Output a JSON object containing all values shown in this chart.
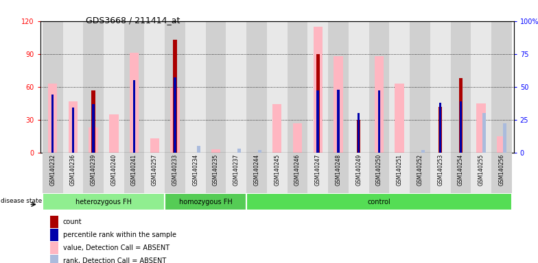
{
  "title": "GDS3668 / 211414_at",
  "samples": [
    "GSM140232",
    "GSM140236",
    "GSM140239",
    "GSM140240",
    "GSM140241",
    "GSM140257",
    "GSM140233",
    "GSM140234",
    "GSM140235",
    "GSM140237",
    "GSM140244",
    "GSM140245",
    "GSM140246",
    "GSM140247",
    "GSM140248",
    "GSM140249",
    "GSM140250",
    "GSM140251",
    "GSM140252",
    "GSM140253",
    "GSM140254",
    "GSM140255",
    "GSM140256"
  ],
  "groups": [
    {
      "label": "heterozygous FH",
      "start": 0,
      "end": 6,
      "color": "#90EE90"
    },
    {
      "label": "homozygous FH",
      "start": 6,
      "end": 10,
      "color": "#55CC55"
    },
    {
      "label": "control",
      "start": 10,
      "end": 23,
      "color": "#55DD55"
    }
  ],
  "count": [
    null,
    null,
    57,
    null,
    null,
    null,
    103,
    null,
    null,
    null,
    null,
    null,
    null,
    90,
    null,
    30,
    null,
    null,
    null,
    42,
    68,
    null,
    null
  ],
  "percentile": [
    44,
    34,
    37,
    null,
    55,
    null,
    57,
    null,
    null,
    null,
    null,
    null,
    null,
    47,
    48,
    30,
    47,
    null,
    null,
    38,
    39,
    null,
    null
  ],
  "value_absent": [
    63,
    47,
    23,
    35,
    91,
    13,
    59,
    null,
    3,
    null,
    null,
    44,
    27,
    115,
    88,
    null,
    88,
    63,
    null,
    null,
    null,
    45,
    15
  ],
  "rank_absent": [
    null,
    null,
    null,
    null,
    null,
    null,
    null,
    5,
    null,
    3,
    2,
    null,
    null,
    null,
    null,
    null,
    null,
    null,
    2,
    null,
    null,
    30,
    22
  ],
  "ylim_left": [
    0,
    120
  ],
  "ylim_right": [
    0,
    100
  ],
  "yticks_left": [
    0,
    30,
    60,
    90,
    120
  ],
  "ytick_labels_left": [
    "0",
    "30",
    "60",
    "90",
    "120"
  ],
  "yticks_right": [
    0,
    25,
    50,
    75,
    100
  ],
  "ytick_labels_right": [
    "0",
    "25",
    "50",
    "75",
    "100%"
  ],
  "color_count": "#AA0000",
  "color_percentile": "#0000AA",
  "color_value_absent": "#FFB6C1",
  "color_rank_absent": "#AABBDD",
  "legend_items": [
    {
      "label": "count",
      "color": "#AA0000"
    },
    {
      "label": "percentile rank within the sample",
      "color": "#0000AA"
    },
    {
      "label": "value, Detection Call = ABSENT",
      "color": "#FFB6C1"
    },
    {
      "label": "rank, Detection Call = ABSENT",
      "color": "#AABBDD"
    }
  ],
  "bg_color": "#E8E8E8"
}
